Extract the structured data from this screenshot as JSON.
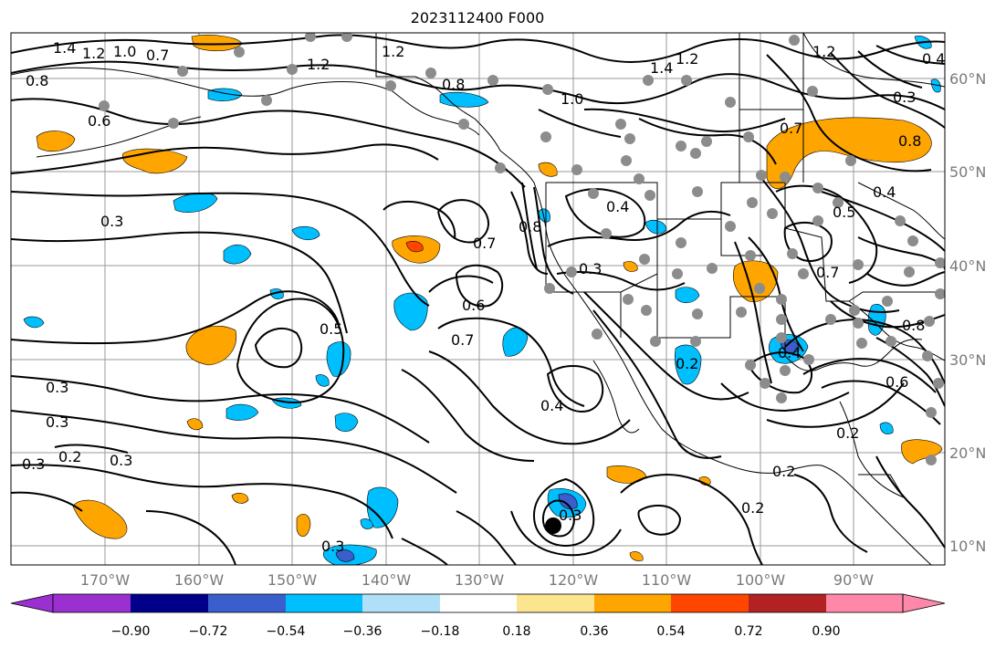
{
  "title": "2023112400 F000",
  "map": {
    "lon_ticks": [
      "170°W",
      "160°W",
      "150°W",
      "140°W",
      "130°W",
      "120°W",
      "110°W",
      "100°W",
      "90°W"
    ],
    "lat_ticks": [
      "60°N",
      "50°N",
      "40°N",
      "30°N",
      "20°N",
      "10°N"
    ],
    "contour_labels": [
      "1.4",
      "1.2",
      "1.0",
      "0.7",
      "0.8",
      "0.6",
      "0.3",
      "0.3",
      "0.3",
      "0.2",
      "0.3",
      "0.2",
      "1.2",
      "0.6",
      "0.8",
      "1.0",
      "1.4",
      "1.2",
      "1.2",
      "0.4",
      "0.3",
      "0.8",
      "0.7",
      "0.8",
      "0.4",
      "0.3",
      "0.5",
      "0.7",
      "0.4",
      "0.3",
      "0.7",
      "0.6",
      "0.7",
      "0.4",
      "0.2",
      "0.5",
      "0.4",
      "0.8",
      "0.6",
      "0.2",
      "0.2",
      "0.2",
      "0.3",
      "0.3"
    ],
    "colors": {
      "land_border": "#000000",
      "grid": "#9a9a9a",
      "station_dot": "#8c8c8c",
      "storm_marker": "#000000"
    }
  },
  "colorbar": {
    "labels": [
      "−0.90",
      "−0.72",
      "−0.54",
      "−0.36",
      "−0.18",
      "0.18",
      "0.36",
      "0.54",
      "0.72",
      "0.90"
    ],
    "colors": [
      "#9b30d0",
      "#00008b",
      "#3a5fcd",
      "#00bfff",
      "#b0e0f8",
      "#ffffff",
      "#fbe58f",
      "#ffa500",
      "#ff4500",
      "#b22222",
      "#ff88aa"
    ]
  }
}
